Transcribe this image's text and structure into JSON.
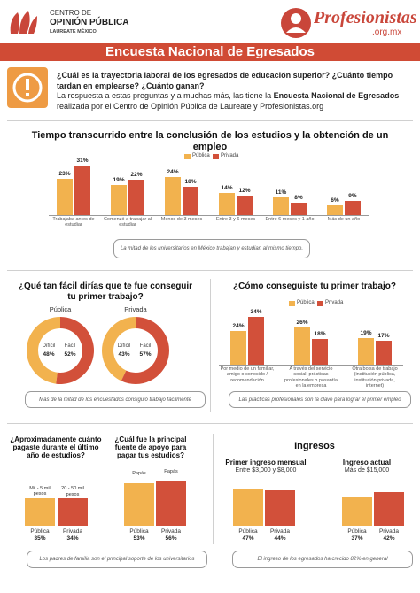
{
  "header": {
    "logo_line1": "CENTRO DE",
    "logo_line2": "OPINIÓN PÚBLICA",
    "logo_line3": "LAUREATE MÉXICO",
    "brand": "Profesionistas",
    "brand_domain": ".org.mx"
  },
  "banner": "Encuesta Nacional de Egresados",
  "intro": {
    "question": "¿Cuál es la trayectoria laboral de los egresados de educación superior? ¿Cuánto tiempo tardan en emplearse? ¿Cuánto ganan?",
    "answer_start": "La respuesta a estas preguntas y a muchas más, las tiene la ",
    "answer_bold": "Encuesta Nacional de Egresados",
    "answer_end": " realizada por el Centro de Opinión Pública de Laureate y Profesionistas.org"
  },
  "ingresos_title": "Ingresos",
  "chart_data": [
    {
      "type": "bar",
      "title": "Tiempo transcurrido entre la conclusión de los estudios y la obtención de un empleo",
      "categories": [
        "Trabajaba antes de estudiar",
        "Comenzó a trabajar al estudiar",
        "Menos de 3 meses",
        "Entre 3 y 6 meses",
        "Entre 6 meses y 1 año",
        "Más de un año"
      ],
      "series": [
        {
          "name": "Pública",
          "color": "#f2b24e",
          "values": [
            23,
            19,
            24,
            14,
            11,
            6
          ],
          "value_labels": [
            "23%",
            "19%",
            "24%",
            "14%",
            "11%",
            "6%"
          ]
        },
        {
          "name": "Privada",
          "color": "#d2503a",
          "values": [
            31,
            22,
            18,
            12,
            8,
            9
          ],
          "value_labels": [
            "31%",
            "22%",
            "18%",
            "12%",
            "8%",
            "9%"
          ]
        }
      ],
      "legend": "top-right",
      "note": "La mitad de los universitarios en México trabajan y estudian al mismo tiempo."
    },
    {
      "type": "donut",
      "title": "¿Qué tan fácil dirías que te fue conseguir tu primer trabajo?",
      "categories": [
        "Difícil",
        "Fácil"
      ],
      "colors": [
        "#f2b24e",
        "#d2503a"
      ],
      "series": [
        {
          "name": "Pública",
          "values": [
            48,
            52
          ],
          "value_labels": [
            "48%",
            "52%"
          ]
        },
        {
          "name": "Privada",
          "values": [
            43,
            57
          ],
          "value_labels": [
            "43%",
            "57%"
          ]
        }
      ],
      "note": "Más de la mitad de los encuestados consiguió trabajo fácilmente"
    },
    {
      "type": "bar",
      "title": "¿Cómo conseguiste tu primer trabajo?",
      "categories": [
        "Por medio de un familiar, amigo o conocido / recomendación",
        "A través del servicio social, prácticas profesionales o pasantía en la empresa",
        "Otra bolsa de trabajo (institución pública, institución privada, internet)"
      ],
      "series": [
        {
          "name": "Pública",
          "color": "#f2b24e",
          "values": [
            24,
            26,
            19
          ],
          "value_labels": [
            "24%",
            "26%",
            "19%"
          ]
        },
        {
          "name": "Privada",
          "color": "#d2503a",
          "values": [
            34,
            18,
            17
          ],
          "value_labels": [
            "34%",
            "18%",
            "17%"
          ]
        }
      ],
      "legend": "top-center",
      "note": "Las prácticas profesionales son la clave para lograr el primer empleo"
    },
    {
      "type": "bar",
      "title": "¿Aproximadamente cuánto pagaste durante el último año de estudios?",
      "categories": [
        "Pública",
        "Privada"
      ],
      "colors": [
        "#f2b24e",
        "#d2503a"
      ],
      "values": [
        35,
        34
      ],
      "value_labels": [
        "35%",
        "34%"
      ],
      "bar_labels": [
        "Mil - 5 mil pesos",
        "20 - 50 mil pesos"
      ],
      "note": "Los padres de familia son el principal soporte de los universitarios"
    },
    {
      "type": "bar",
      "title": "¿Cuál fue la principal fuente de apoyo para pagar tus estudios?",
      "categories": [
        "Pública",
        "Privada"
      ],
      "colors": [
        "#f2b24e",
        "#d2503a"
      ],
      "values": [
        53,
        56
      ],
      "value_labels": [
        "53%",
        "56%"
      ],
      "bar_labels": [
        "Papás",
        "Papás"
      ]
    },
    {
      "type": "bar",
      "title": "Primer ingreso mensual",
      "subtitle": "Entre $3,000 y $8,000",
      "categories": [
        "Pública",
        "Privada"
      ],
      "colors": [
        "#f2b24e",
        "#d2503a"
      ],
      "values": [
        47,
        44
      ],
      "value_labels": [
        "47%",
        "44%"
      ],
      "note": "El ingreso de los egresados ha crecido 82% en general"
    },
    {
      "type": "bar",
      "title": "Ingreso actual",
      "subtitle": "Más de $15,000",
      "categories": [
        "Pública",
        "Privada"
      ],
      "colors": [
        "#f2b24e",
        "#d2503a"
      ],
      "values": [
        37,
        42
      ],
      "value_labels": [
        "37%",
        "42%"
      ]
    }
  ]
}
